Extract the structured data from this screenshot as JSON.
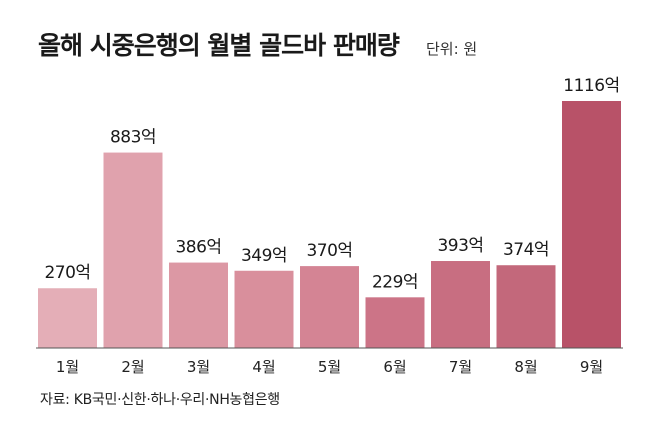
{
  "title": "올해 시중은행의 월별 골드바 판매량",
  "unit_label": "단위: 원",
  "source": "자료: KB국민·신한·하나·우리·NH농협은행",
  "chart_data": {
    "type": "bar",
    "categories": [
      "1월",
      "2월",
      "3월",
      "4월",
      "5월",
      "6월",
      "7월",
      "8월",
      "9월"
    ],
    "values": [
      270,
      883,
      386,
      349,
      370,
      229,
      393,
      374,
      1116
    ],
    "data_labels": [
      "270억",
      "883억",
      "386억",
      "349억",
      "370억",
      "229억",
      "393억",
      "374억",
      "1116억"
    ],
    "title": "올해 시중은행의 월별 골드바 판매량",
    "xlabel": "",
    "ylabel": "",
    "ylim": [
      0,
      1116
    ],
    "grid": false,
    "legend": "none",
    "colors": [
      "#e4aeb7",
      "#e0a2ad",
      "#dc98a4",
      "#d98f9c",
      "#d48494",
      "#cc7487",
      "#c86e81",
      "#c3687b",
      "#b85268"
    ],
    "baseline_color": "#555555"
  }
}
